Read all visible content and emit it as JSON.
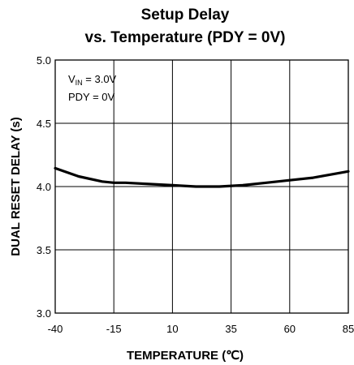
{
  "chart_data": {
    "type": "line",
    "title_line1": "Setup Delay",
    "title_line2": "vs. Temperature (PDY = 0V)",
    "xlabel": "TEMPERATURE (℃)",
    "ylabel": "DUAL RESET DELAY (s)",
    "xlim": [
      -40,
      85
    ],
    "ylim": [
      3.0,
      5.0
    ],
    "x_ticks": [
      -40,
      -15,
      10,
      35,
      60,
      85
    ],
    "x_tick_labels": [
      "-40",
      "-15",
      "10",
      "35",
      "60",
      "85"
    ],
    "y_ticks": [
      3.0,
      3.5,
      4.0,
      4.5,
      5.0
    ],
    "y_tick_labels": [
      "3.0",
      "3.5",
      "4.0",
      "4.5",
      "5.0"
    ],
    "grid": true,
    "annotations": {
      "vin_main": "V",
      "vin_sub": "IN",
      "vin_value": " = 3.0V",
      "pdy": "PDY = 0V"
    },
    "series": [
      {
        "x": [
          -40,
          -30,
          -20,
          -15,
          -10,
          0,
          10,
          20,
          30,
          40,
          50,
          60,
          70,
          85
        ],
        "values": [
          4.145,
          4.08,
          4.04,
          4.03,
          4.03,
          4.02,
          4.01,
          4.0,
          4.0,
          4.01,
          4.03,
          4.05,
          4.07,
          4.12
        ]
      }
    ]
  }
}
